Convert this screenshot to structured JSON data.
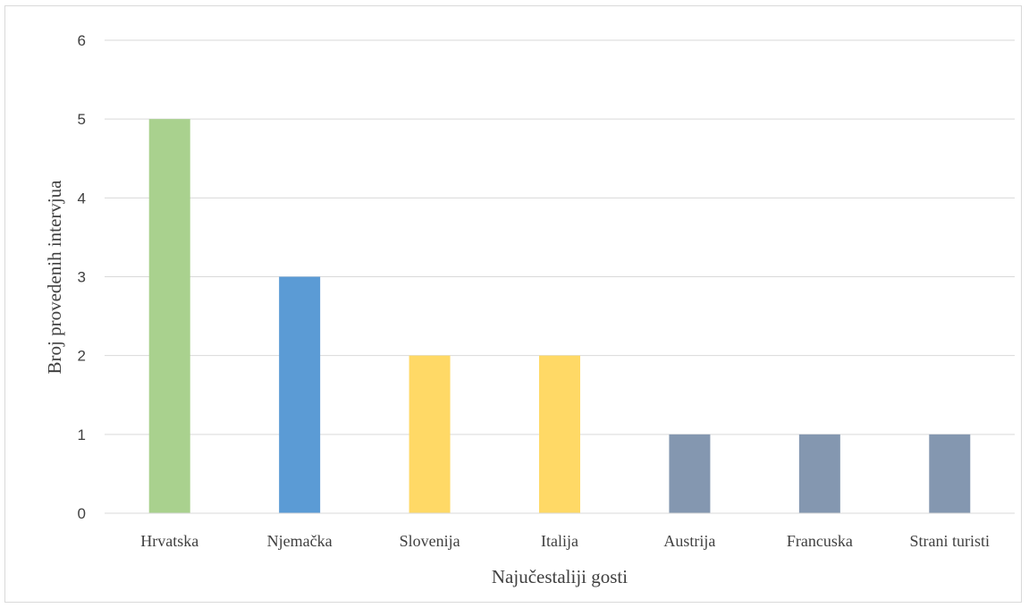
{
  "chart_data": {
    "type": "bar",
    "title": "",
    "xlabel": "Najučestaliji gosti",
    "ylabel": "Broj provedenih intervjua",
    "categories": [
      "Hrvatska",
      "Njemačka",
      "Slovenija",
      "Italija",
      "Austrija",
      "Francuska",
      "Strani turisti"
    ],
    "values": [
      5,
      3,
      2,
      2,
      1,
      1,
      1
    ],
    "colors": [
      "#a9d18e",
      "#5b9bd5",
      "#ffd966",
      "#ffd966",
      "#8497b0",
      "#8497b0",
      "#8497b0"
    ],
    "yticks": [
      "0",
      "1",
      "2",
      "3",
      "4",
      "5",
      "6"
    ],
    "ylim": [
      0,
      6
    ],
    "grid": true,
    "legend": "none"
  }
}
